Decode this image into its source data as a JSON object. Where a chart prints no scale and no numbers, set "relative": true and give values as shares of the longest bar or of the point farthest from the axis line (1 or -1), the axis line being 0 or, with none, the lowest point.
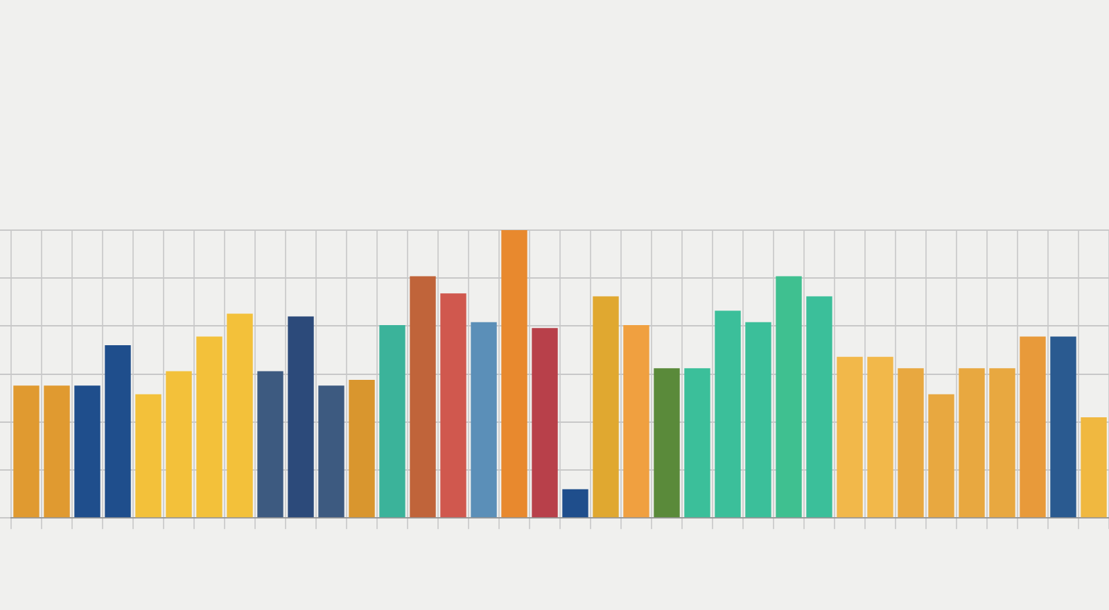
{
  "chart_data": {
    "type": "bar",
    "relative": true,
    "grid": true,
    "categories": [
      null,
      null,
      null,
      null,
      null,
      null,
      null,
      null,
      null,
      null,
      null,
      null,
      null,
      null,
      null,
      null,
      null,
      null,
      null,
      null,
      null,
      null,
      null,
      null,
      null,
      null,
      null,
      null,
      null,
      null,
      null,
      null,
      null,
      null,
      null,
      null
    ],
    "values": [
      0.46,
      0.46,
      0.46,
      0.6,
      0.43,
      0.51,
      0.63,
      0.71,
      0.51,
      0.7,
      0.46,
      0.48,
      0.67,
      0.84,
      0.78,
      0.68,
      1,
      0.66,
      0.1,
      0.77,
      0.67,
      0.52,
      0.52,
      0.72,
      0.68,
      0.84,
      0.77,
      0.56,
      0.56,
      0.52,
      0.43,
      0.52,
      0.52,
      0.63,
      0.63,
      0.35
    ],
    "colors": [
      "#e09a30",
      "#e09a30",
      "#1f4e8c",
      "#1f4e8c",
      "#f3c13a",
      "#f3c13a",
      "#f3c13a",
      "#f3c13a",
      "#3d5a80",
      "#2c4a7a",
      "#3d5a80",
      "#d9962e",
      "#3bb39a",
      "#c0643a",
      "#d0584e",
      "#5b8fb8",
      "#e8892e",
      "#b8404a",
      "#1f4e8c",
      "#e0a830",
      "#f0a040",
      "#5a8a3a",
      "#3bbf9a",
      "#3bbf9a",
      "#3bbf9a",
      "#3fc090",
      "#3bbf9a",
      "#f2b84a",
      "#f2b84a",
      "#e8a840",
      "#e8a840",
      "#e8a840",
      "#e8a840",
      "#e89a3a",
      "#2a5a90",
      "#f0b840"
    ]
  }
}
